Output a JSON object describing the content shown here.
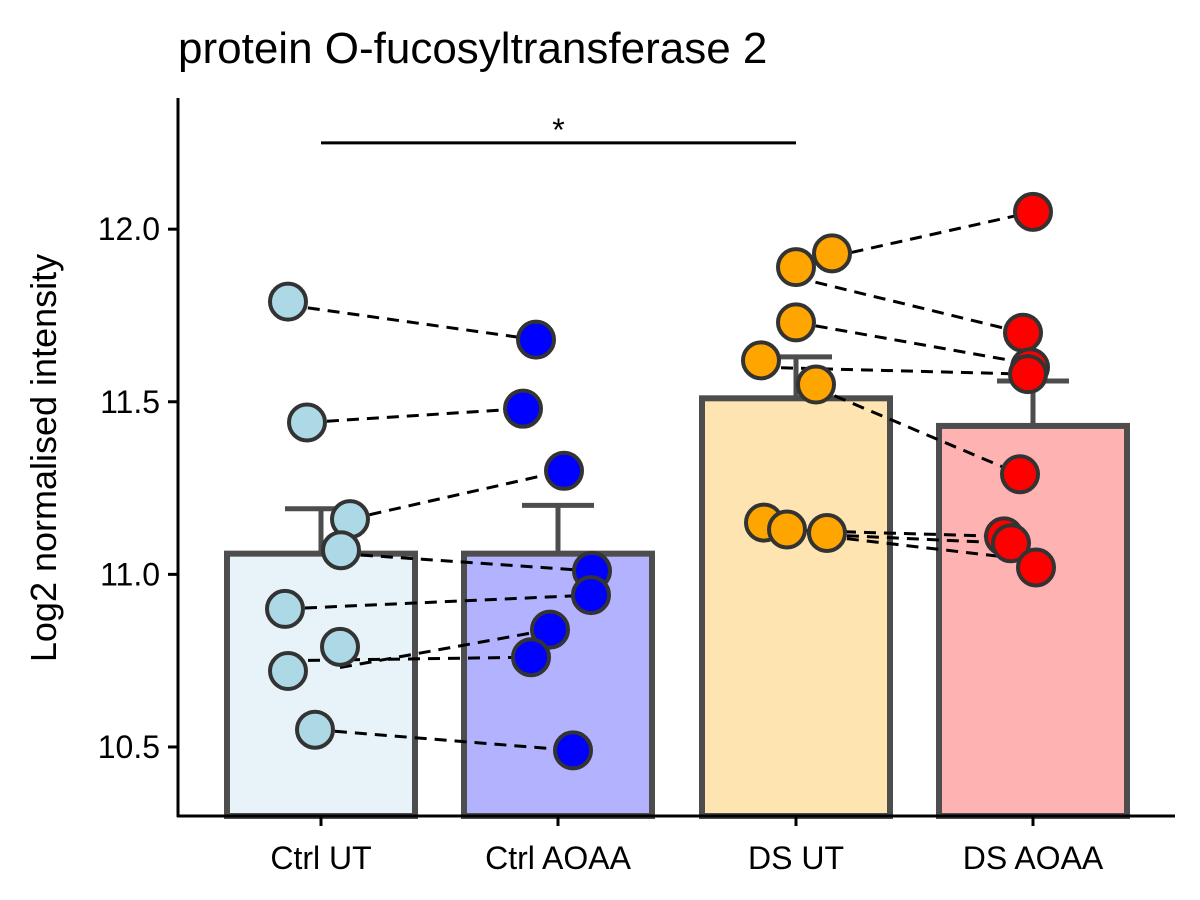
{
  "chart_data": {
    "type": "bar",
    "title": "protein O-fucosyltransferase 2",
    "xlabel": "",
    "ylabel": "Log2 normalised intensity",
    "ylim": [
      10.3,
      12.38
    ],
    "yticks": [
      10.5,
      11.0,
      11.5,
      12.0
    ],
    "ytick_labels": [
      "10.5",
      "11.0",
      "11.5",
      "12.0"
    ],
    "categories": [
      "Ctrl UT",
      "Ctrl AOAA",
      "DS UT",
      "DS AOAA"
    ],
    "values": [
      11.06,
      11.06,
      11.51,
      11.43
    ],
    "error_upper": [
      11.19,
      11.2,
      11.63,
      11.56
    ],
    "bar_fill": [
      "#e8f3f9",
      "#b2b2ff",
      "#fde4b1",
      "#ffb2b2"
    ],
    "point_color": [
      "#add8e6",
      "#0000ff",
      "#ffa500",
      "#ff0000"
    ],
    "points": [
      [
        11.79,
        11.44,
        11.16,
        11.07,
        10.9,
        10.79,
        10.72,
        10.55
      ],
      [
        11.68,
        11.48,
        11.3,
        11.01,
        10.94,
        10.84,
        10.76,
        10.49
      ],
      [
        11.93,
        11.89,
        11.73,
        11.62,
        11.55,
        11.15,
        11.13,
        11.12
      ],
      [
        12.05,
        11.7,
        11.6,
        11.58,
        11.29,
        11.11,
        11.09,
        11.02
      ]
    ],
    "pairs": [
      {
        "group_a": 0,
        "value_a": 11.78,
        "group_b": 1,
        "value_b": 11.68
      },
      {
        "group_a": 0,
        "value_a": 11.44,
        "group_b": 1,
        "value_b": 11.48
      },
      {
        "group_a": 0,
        "value_a": 11.16,
        "group_b": 1,
        "value_b": 11.3
      },
      {
        "group_a": 0,
        "value_a": 11.06,
        "group_b": 1,
        "value_b": 11.01
      },
      {
        "group_a": 0,
        "value_a": 10.9,
        "group_b": 1,
        "value_b": 10.94
      },
      {
        "group_a": 0,
        "value_a": 10.73,
        "group_b": 1,
        "value_b": 10.84
      },
      {
        "group_a": 0,
        "value_a": 10.75,
        "group_b": 1,
        "value_b": 10.76
      },
      {
        "group_a": 0,
        "value_a": 10.55,
        "group_b": 1,
        "value_b": 10.49
      },
      {
        "group_a": 2,
        "value_a": 11.92,
        "group_b": 3,
        "value_b": 12.05
      },
      {
        "group_a": 2,
        "value_a": 11.86,
        "group_b": 3,
        "value_b": 11.7
      },
      {
        "group_a": 2,
        "value_a": 11.73,
        "group_b": 3,
        "value_b": 11.61
      },
      {
        "group_a": 2,
        "value_a": 11.6,
        "group_b": 3,
        "value_b": 11.58
      },
      {
        "group_a": 2,
        "value_a": 11.54,
        "group_b": 3,
        "value_b": 11.29
      },
      {
        "group_a": 2,
        "value_a": 11.13,
        "group_b": 3,
        "value_b": 11.11
      },
      {
        "group_a": 2,
        "value_a": 11.12,
        "group_b": 3,
        "value_b": 11.09
      },
      {
        "group_a": 2,
        "value_a": 11.11,
        "group_b": 3,
        "value_b": 11.04
      }
    ],
    "significance": [
      {
        "from": 0,
        "to": 2,
        "y": 12.25,
        "label": "*"
      }
    ]
  }
}
